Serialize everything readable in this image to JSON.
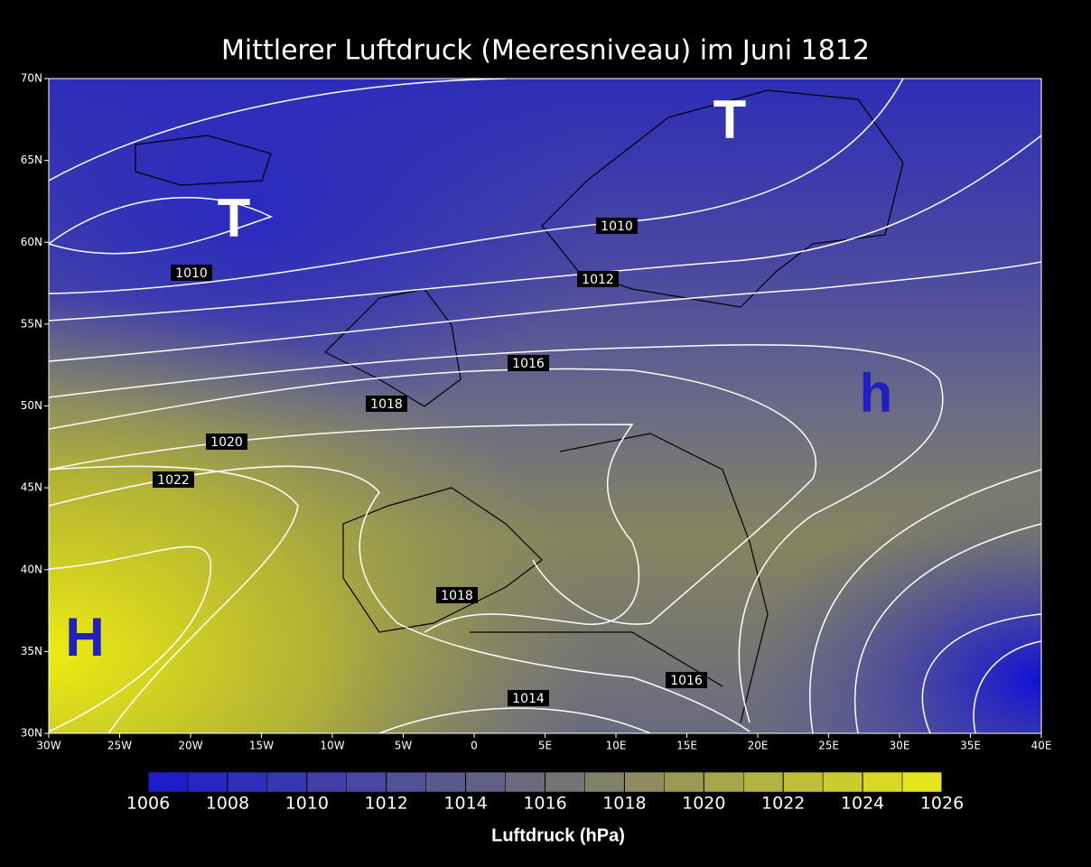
{
  "title": "Mittlerer Luftdruck (Meeresniveau) im Juni 1812",
  "map": {
    "lon_ticks": [
      "30W",
      "25W",
      "20W",
      "15W",
      "10W",
      "5W",
      "0",
      "5E",
      "10E",
      "15E",
      "20E",
      "25E",
      "30E",
      "35E",
      "40E"
    ],
    "lat_ticks": [
      "70N",
      "65N",
      "60N",
      "55N",
      "50N",
      "45N",
      "40N",
      "35N",
      "30N"
    ],
    "contour_labels": [
      "1010",
      "1010",
      "1012",
      "1016",
      "1018",
      "1020",
      "1022",
      "1018",
      "1016",
      "1014"
    ],
    "pressure_systems": [
      "T",
      "T",
      "h",
      "H"
    ]
  },
  "colorbar": {
    "ticks": [
      1006,
      1008,
      1010,
      1012,
      1014,
      1016,
      1018,
      1020,
      1022,
      1024,
      1026
    ],
    "label": "Luftdruck (hPa)"
  }
}
